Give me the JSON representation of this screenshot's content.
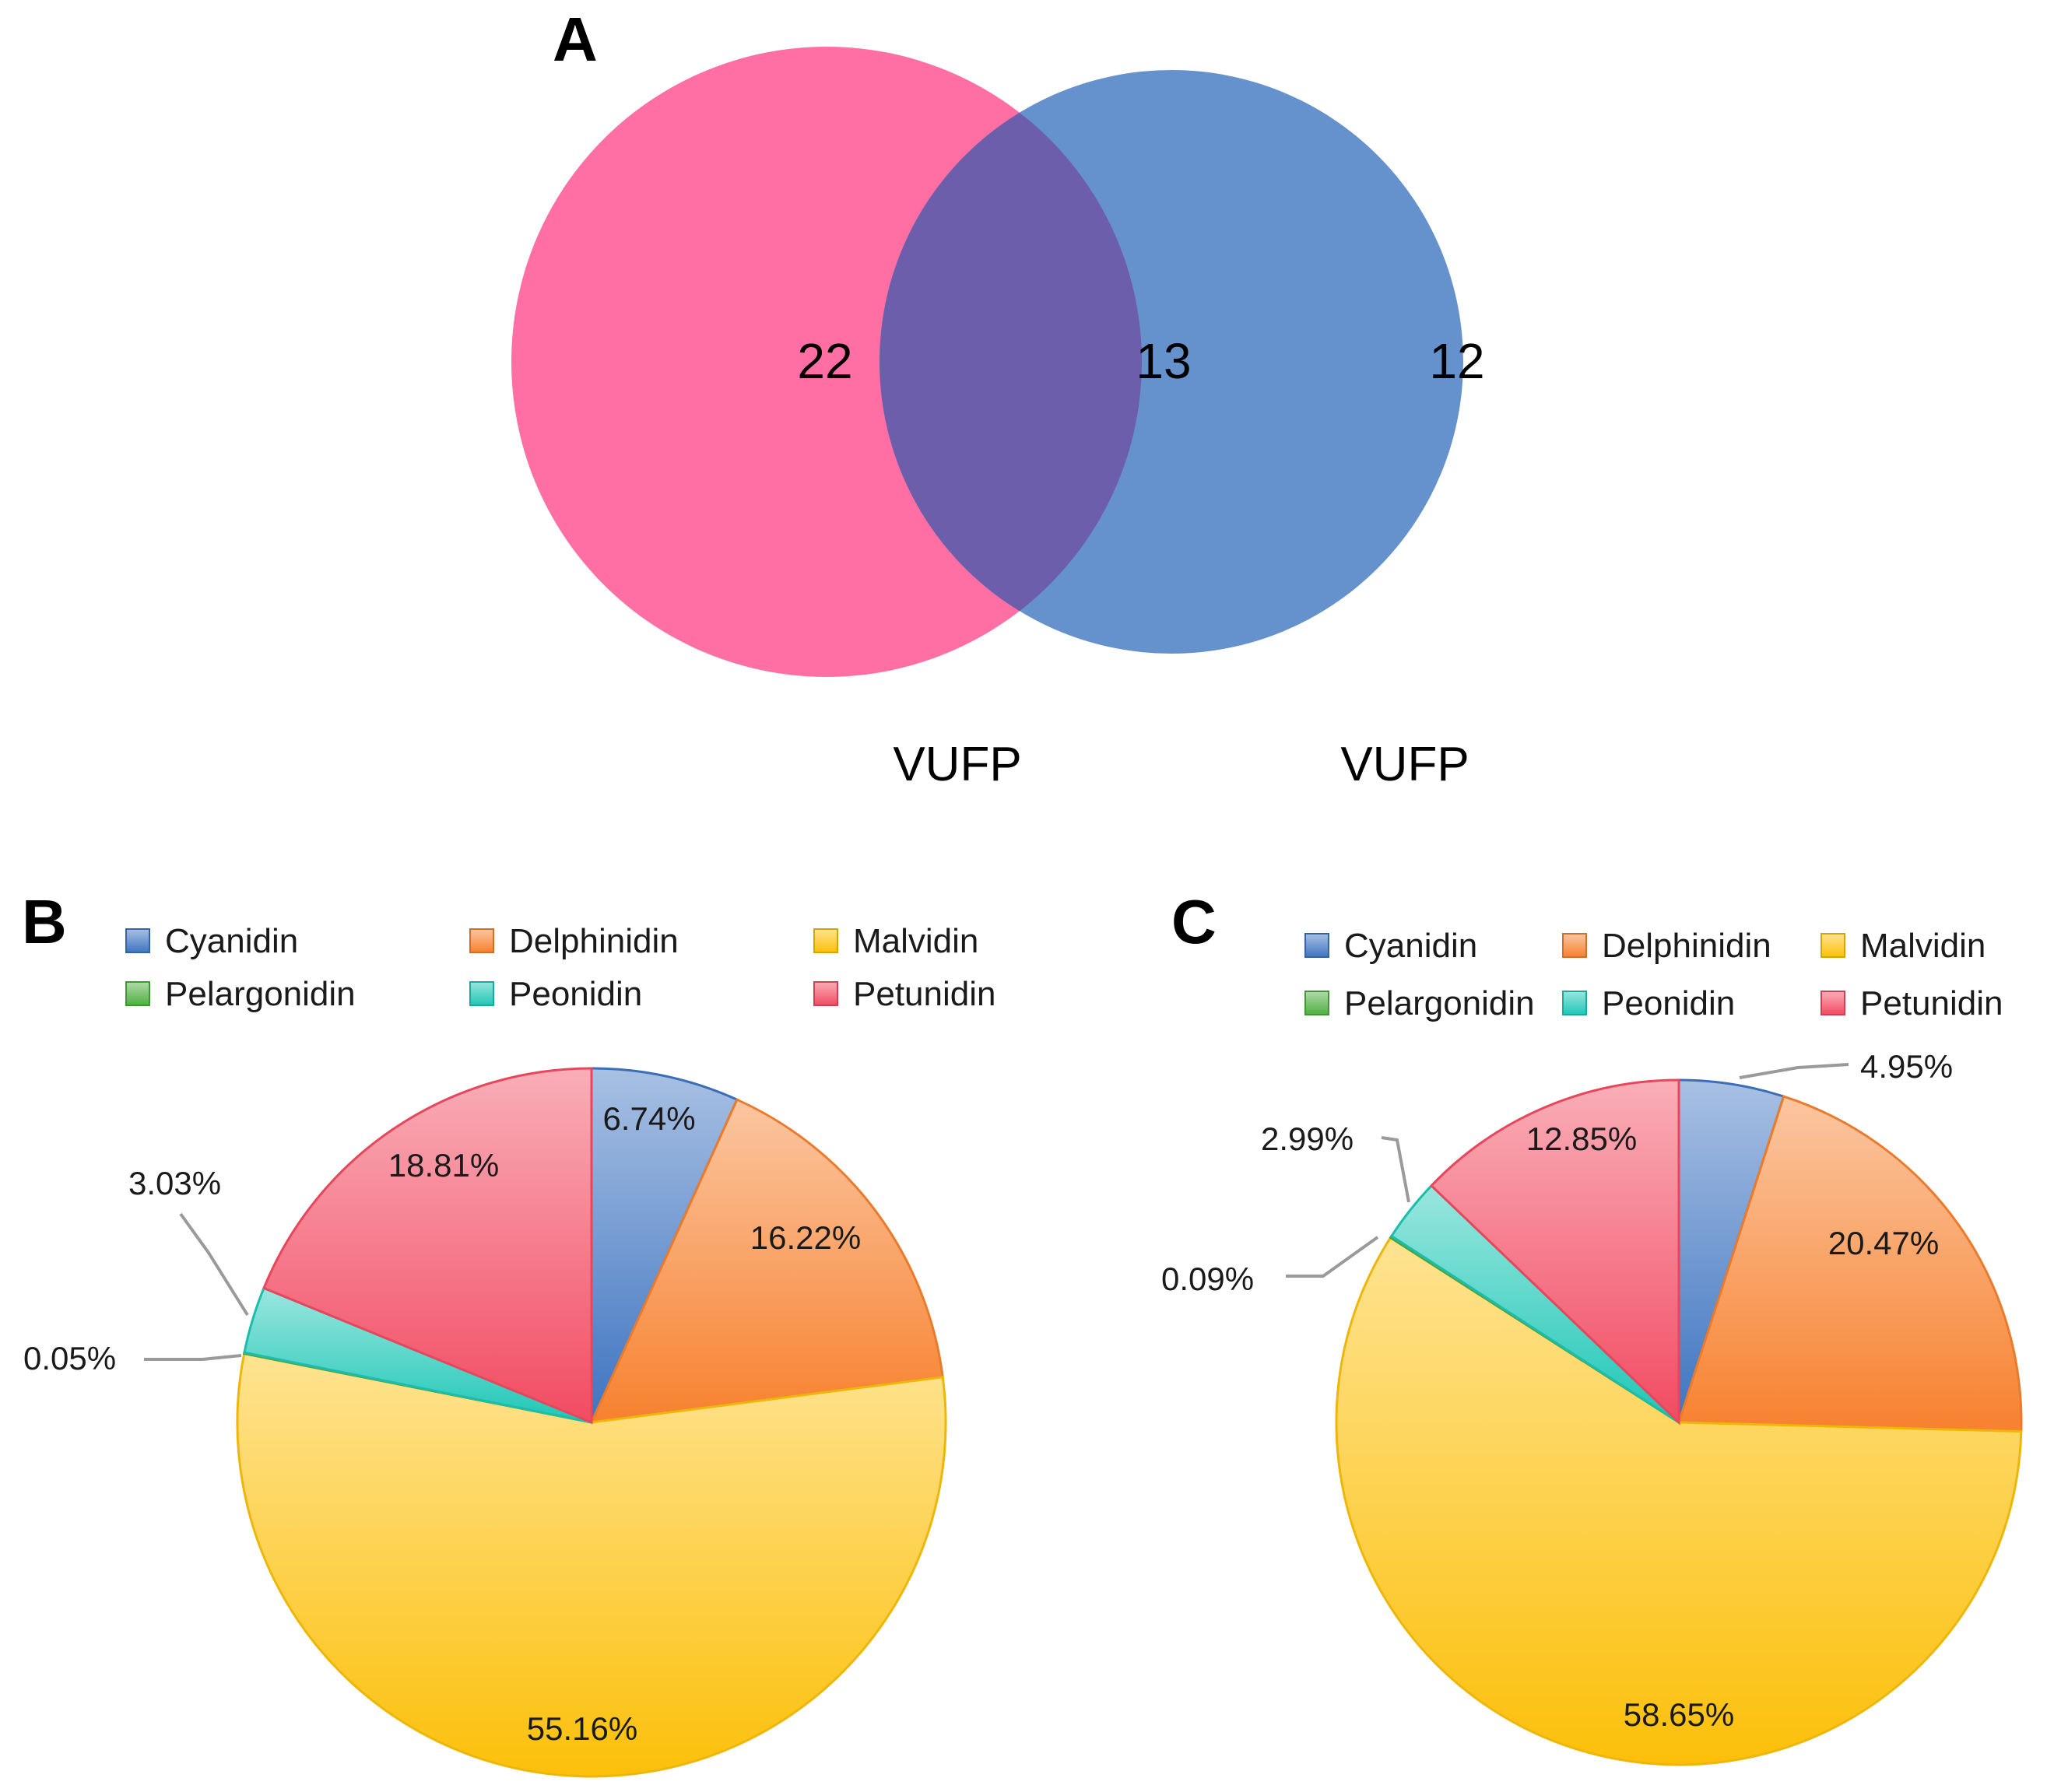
{
  "panels": {
    "a": "A",
    "b": "B",
    "c": "C"
  },
  "venn": {
    "left_only": "22",
    "overlap": "13",
    "right_only": "12",
    "left_label": "VUFP",
    "right_label": "VUFP",
    "left_color": "#FF6FA4",
    "right_color": "#6592CD",
    "overlap_color": "#6C5EAA"
  },
  "chart_data": [
    {
      "type": "pie",
      "panel": "B",
      "categories": [
        "Cyanidin",
        "Delphinidin",
        "Malvidin",
        "Pelargonidin",
        "Peonidin",
        "Petunidin"
      ],
      "values": [
        6.74,
        16.22,
        55.16,
        0.05,
        3.03,
        18.81
      ],
      "labels": [
        "6.74%",
        "16.22%",
        "55.16%",
        "0.05%",
        "3.03%",
        "18.81%"
      ],
      "colors": [
        "#3E74C0",
        "#F7812E",
        "#FCC00A",
        "#4FAF41",
        "#1EC7B6",
        "#F24B62"
      ],
      "legend_position": "top"
    },
    {
      "type": "pie",
      "panel": "C",
      "categories": [
        "Cyanidin",
        "Delphinidin",
        "Malvidin",
        "Pelargonidin",
        "Peonidin",
        "Petunidin"
      ],
      "values": [
        4.95,
        20.47,
        58.65,
        0.09,
        2.99,
        12.85
      ],
      "labels": [
        "4.95%",
        "20.47%",
        "58.65%",
        "0.09%",
        "2.99%",
        "12.85%"
      ],
      "colors": [
        "#3E74C0",
        "#F7812E",
        "#FCC00A",
        "#4FAF41",
        "#1EC7B6",
        "#F24B62"
      ],
      "legend_position": "top"
    }
  ]
}
